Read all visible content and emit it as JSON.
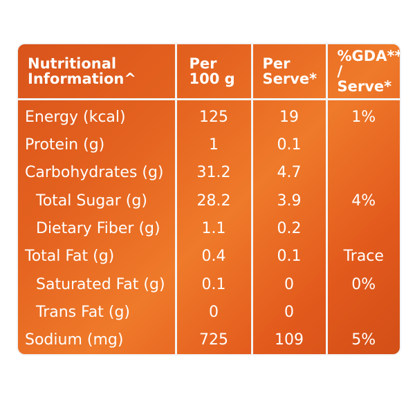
{
  "header": {
    "col1_line1": "Nutritional",
    "col1_line2": "Information^",
    "col2_line1": "Per",
    "col2_line2": "100 g",
    "col3_line1": "Per",
    "col3_line2": "Serve*",
    "col4_line1": "%GDA**",
    "col4_line2": "/ Serve*"
  },
  "rows": [
    {
      "label": "Energy (kcal)",
      "per100g": "125",
      "perServe": "19",
      "gda": "1%"
    },
    {
      "label": "Protein (g)",
      "per100g": "1",
      "perServe": "0.1",
      "gda": ""
    },
    {
      "label": "Carbohydrates (g)",
      "per100g": "31.2",
      "perServe": "4.7",
      "gda": ""
    },
    {
      "label": "Total Sugar (g)",
      "per100g": "28.2",
      "perServe": "3.9",
      "gda": "4%"
    },
    {
      "label": "Dietary Fiber (g)",
      "per100g": "1.1",
      "perServe": "0.2",
      "gda": ""
    },
    {
      "label": "Total Fat (g)",
      "per100g": "0.4",
      "perServe": "0.1",
      "gda": "Trace"
    },
    {
      "label": "Saturated Fat (g)",
      "per100g": "0.1",
      "perServe": "0",
      "gda": "0%"
    },
    {
      "label": "Trans Fat (g)",
      "per100g": "0",
      "perServe": "0",
      "gda": ""
    },
    {
      "label": "Sodium (mg)",
      "per100g": "725",
      "perServe": "109",
      "gda": "5%"
    }
  ],
  "colors": {
    "panel": "#e4621f",
    "grid": "#f4f4f4",
    "text": "#ffffff"
  }
}
